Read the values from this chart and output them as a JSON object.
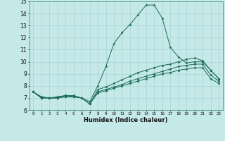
{
  "xlabel": "Humidex (Indice chaleur)",
  "bg_color": "#c5e8e8",
  "grid_color": "#aad4d4",
  "line_color": "#1a6b5a",
  "xlim": [
    -0.5,
    23.5
  ],
  "ylim": [
    6,
    15
  ],
  "xticks": [
    0,
    1,
    2,
    3,
    4,
    5,
    6,
    7,
    8,
    9,
    10,
    11,
    12,
    13,
    14,
    15,
    16,
    17,
    18,
    19,
    20,
    21,
    22,
    23
  ],
  "yticks": [
    6,
    7,
    8,
    9,
    10,
    11,
    12,
    13,
    14,
    15
  ],
  "line1_y": [
    7.5,
    7.0,
    7.0,
    7.0,
    7.2,
    7.1,
    7.0,
    6.7,
    8.0,
    9.6,
    11.5,
    12.4,
    13.1,
    13.9,
    14.7,
    14.7,
    13.6,
    11.2,
    10.4,
    9.9,
    10.0,
    10.0,
    9.3,
    8.6
  ],
  "line2_y": [
    7.5,
    7.1,
    7.0,
    7.1,
    7.2,
    7.2,
    7.0,
    6.5,
    7.7,
    7.9,
    8.2,
    8.5,
    8.8,
    9.1,
    9.3,
    9.5,
    9.7,
    9.8,
    10.0,
    10.2,
    10.3,
    10.1,
    9.3,
    8.6
  ],
  "line3_y": [
    7.5,
    7.0,
    7.0,
    7.0,
    7.1,
    7.1,
    7.0,
    6.5,
    7.5,
    7.7,
    7.9,
    8.1,
    8.4,
    8.6,
    8.8,
    9.0,
    9.2,
    9.4,
    9.6,
    9.7,
    9.8,
    9.8,
    8.9,
    8.4
  ],
  "line4_y": [
    7.5,
    7.0,
    7.0,
    7.0,
    7.1,
    7.1,
    7.0,
    6.5,
    7.4,
    7.6,
    7.8,
    8.0,
    8.2,
    8.4,
    8.6,
    8.8,
    9.0,
    9.1,
    9.3,
    9.4,
    9.5,
    9.5,
    8.6,
    8.2
  ]
}
